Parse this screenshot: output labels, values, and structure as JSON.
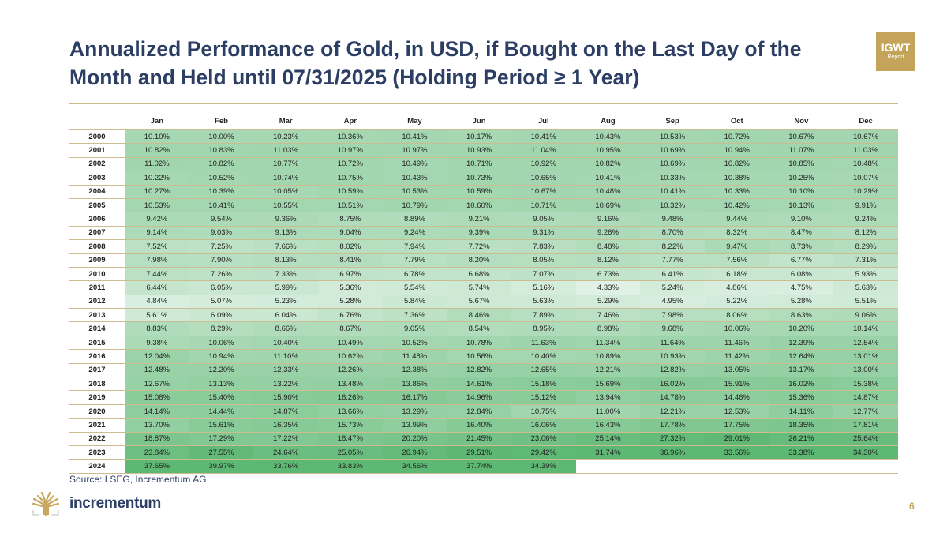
{
  "title": "Annualized Performance of Gold, in USD, if Bought on the Last Day of the Month and Held until 07/31/2025 (Holding Period ≥ 1 Year)",
  "badge": {
    "line1": "IGWT",
    "line2": "Report"
  },
  "source": "Source: LSEG, Incrementum AG",
  "logo_text": "incrementum",
  "page_number": "6",
  "colors": {
    "title": "#2c3e63",
    "gold": "#c3a45a",
    "heat_low": "#e0f1e5",
    "heat_high": "#5db873"
  },
  "chart_data": {
    "type": "heatmap",
    "title": "Annualized Performance of Gold, in USD, if Bought on the Last Day of the Month and Held until 07/31/2025 (Holding Period ≥ 1 Year)",
    "columns": [
      "Jan",
      "Feb",
      "Mar",
      "Apr",
      "May",
      "Jun",
      "Jul",
      "Aug",
      "Sep",
      "Oct",
      "Nov",
      "Dec"
    ],
    "rows": [
      {
        "year": "2000",
        "values": [
          "10.10%",
          "10.00%",
          "10.23%",
          "10.36%",
          "10.41%",
          "10.17%",
          "10.41%",
          "10.43%",
          "10.53%",
          "10.72%",
          "10.67%",
          "10.67%"
        ]
      },
      {
        "year": "2001",
        "values": [
          "10.82%",
          "10.83%",
          "11.03%",
          "10.97%",
          "10.97%",
          "10.93%",
          "11.04%",
          "10.95%",
          "10.69%",
          "10.94%",
          "11.07%",
          "11.03%"
        ]
      },
      {
        "year": "2002",
        "values": [
          "11.02%",
          "10.82%",
          "10.77%",
          "10.72%",
          "10.49%",
          "10.71%",
          "10.92%",
          "10.82%",
          "10.69%",
          "10.82%",
          "10.85%",
          "10.48%"
        ]
      },
      {
        "year": "2003",
        "values": [
          "10.22%",
          "10.52%",
          "10.74%",
          "10.75%",
          "10.43%",
          "10.73%",
          "10.65%",
          "10.41%",
          "10.33%",
          "10.38%",
          "10.25%",
          "10.07%"
        ]
      },
      {
        "year": "2004",
        "values": [
          "10.27%",
          "10.39%",
          "10.05%",
          "10.59%",
          "10.53%",
          "10.59%",
          "10.67%",
          "10.48%",
          "10.41%",
          "10.33%",
          "10.10%",
          "10.29%"
        ]
      },
      {
        "year": "2005",
        "values": [
          "10.53%",
          "10.41%",
          "10.55%",
          "10.51%",
          "10.79%",
          "10.60%",
          "10.71%",
          "10.69%",
          "10.32%",
          "10.42%",
          "10.13%",
          "9.91%"
        ]
      },
      {
        "year": "2006",
        "values": [
          "9.42%",
          "9.54%",
          "9.36%",
          "8.75%",
          "8.89%",
          "9.21%",
          "9.05%",
          "9.16%",
          "9.48%",
          "9.44%",
          "9.10%",
          "9.24%"
        ]
      },
      {
        "year": "2007",
        "values": [
          "9.14%",
          "9.03%",
          "9.13%",
          "9.04%",
          "9.24%",
          "9.39%",
          "9.31%",
          "9.26%",
          "8.70%",
          "8.32%",
          "8.47%",
          "8.12%"
        ]
      },
      {
        "year": "2008",
        "values": [
          "7.52%",
          "7.25%",
          "7.66%",
          "8.02%",
          "7.94%",
          "7.72%",
          "7.83%",
          "8.48%",
          "8.22%",
          "9.47%",
          "8.73%",
          "8.29%"
        ]
      },
      {
        "year": "2009",
        "values": [
          "7.98%",
          "7.90%",
          "8.13%",
          "8.41%",
          "7.79%",
          "8.20%",
          "8.05%",
          "8.12%",
          "7.77%",
          "7.56%",
          "6.77%",
          "7.31%"
        ]
      },
      {
        "year": "2010",
        "values": [
          "7.44%",
          "7.26%",
          "7.33%",
          "6.97%",
          "6.78%",
          "6.68%",
          "7.07%",
          "6.73%",
          "6.41%",
          "6.18%",
          "6.08%",
          "5.93%"
        ]
      },
      {
        "year": "2011",
        "values": [
          "6.44%",
          "6.05%",
          "5.99%",
          "5.36%",
          "5.54%",
          "5.74%",
          "5.16%",
          "4.33%",
          "5.24%",
          "4.86%",
          "4.75%",
          "5.63%"
        ]
      },
      {
        "year": "2012",
        "values": [
          "4.84%",
          "5.07%",
          "5.23%",
          "5.28%",
          "5.84%",
          "5.67%",
          "5.63%",
          "5.29%",
          "4.95%",
          "5.22%",
          "5.28%",
          "5.51%"
        ]
      },
      {
        "year": "2013",
        "values": [
          "5.61%",
          "6.09%",
          "6.04%",
          "6.76%",
          "7.36%",
          "8.46%",
          "7.89%",
          "7.46%",
          "7.98%",
          "8.06%",
          "8.63%",
          "9.06%"
        ]
      },
      {
        "year": "2014",
        "values": [
          "8.83%",
          "8.29%",
          "8.66%",
          "8.67%",
          "9.05%",
          "8.54%",
          "8.95%",
          "8.98%",
          "9.68%",
          "10.06%",
          "10.20%",
          "10.14%"
        ]
      },
      {
        "year": "2015",
        "values": [
          "9.38%",
          "10.06%",
          "10.40%",
          "10.49%",
          "10.52%",
          "10.78%",
          "11.63%",
          "11.34%",
          "11.64%",
          "11.46%",
          "12.39%",
          "12.54%"
        ]
      },
      {
        "year": "2016",
        "values": [
          "12.04%",
          "10.94%",
          "11.10%",
          "10.62%",
          "11.48%",
          "10.56%",
          "10.40%",
          "10.89%",
          "10.93%",
          "11.42%",
          "12.64%",
          "13.01%"
        ]
      },
      {
        "year": "2017",
        "values": [
          "12.48%",
          "12.20%",
          "12.33%",
          "12.26%",
          "12.38%",
          "12.82%",
          "12.65%",
          "12.21%",
          "12.82%",
          "13.05%",
          "13.17%",
          "13.00%"
        ]
      },
      {
        "year": "2018",
        "values": [
          "12.67%",
          "13.13%",
          "13.22%",
          "13.48%",
          "13.86%",
          "14.61%",
          "15.18%",
          "15.69%",
          "16.02%",
          "15.91%",
          "16.02%",
          "15.38%"
        ]
      },
      {
        "year": "2019",
        "values": [
          "15.08%",
          "15.40%",
          "15.90%",
          "16.26%",
          "16.17%",
          "14.96%",
          "15.12%",
          "13.94%",
          "14.78%",
          "14.46%",
          "15.36%",
          "14.87%"
        ]
      },
      {
        "year": "2020",
        "values": [
          "14.14%",
          "14.44%",
          "14.87%",
          "13.66%",
          "13.29%",
          "12.84%",
          "10.75%",
          "11.00%",
          "12.21%",
          "12.53%",
          "14.11%",
          "12.77%"
        ]
      },
      {
        "year": "2021",
        "values": [
          "13.70%",
          "15.61%",
          "16.35%",
          "15.73%",
          "13.99%",
          "16.40%",
          "16.06%",
          "16.43%",
          "17.78%",
          "17.75%",
          "18.35%",
          "17.81%"
        ]
      },
      {
        "year": "2022",
        "values": [
          "18.87%",
          "17.29%",
          "17.22%",
          "18.47%",
          "20.20%",
          "21.45%",
          "23.06%",
          "25.14%",
          "27.32%",
          "29.01%",
          "26.21%",
          "25.64%"
        ]
      },
      {
        "year": "2023",
        "values": [
          "23.84%",
          "27.55%",
          "24.64%",
          "25.05%",
          "26.94%",
          "29.51%",
          "29.42%",
          "31.74%",
          "36.96%",
          "33.56%",
          "33.38%",
          "34.30%"
        ]
      },
      {
        "year": "2024",
        "values": [
          "37.65%",
          "39.97%",
          "33.76%",
          "33.83%",
          "34.56%",
          "37.74%",
          "34.39%",
          "",
          "",
          "",
          "",
          ""
        ]
      }
    ]
  }
}
